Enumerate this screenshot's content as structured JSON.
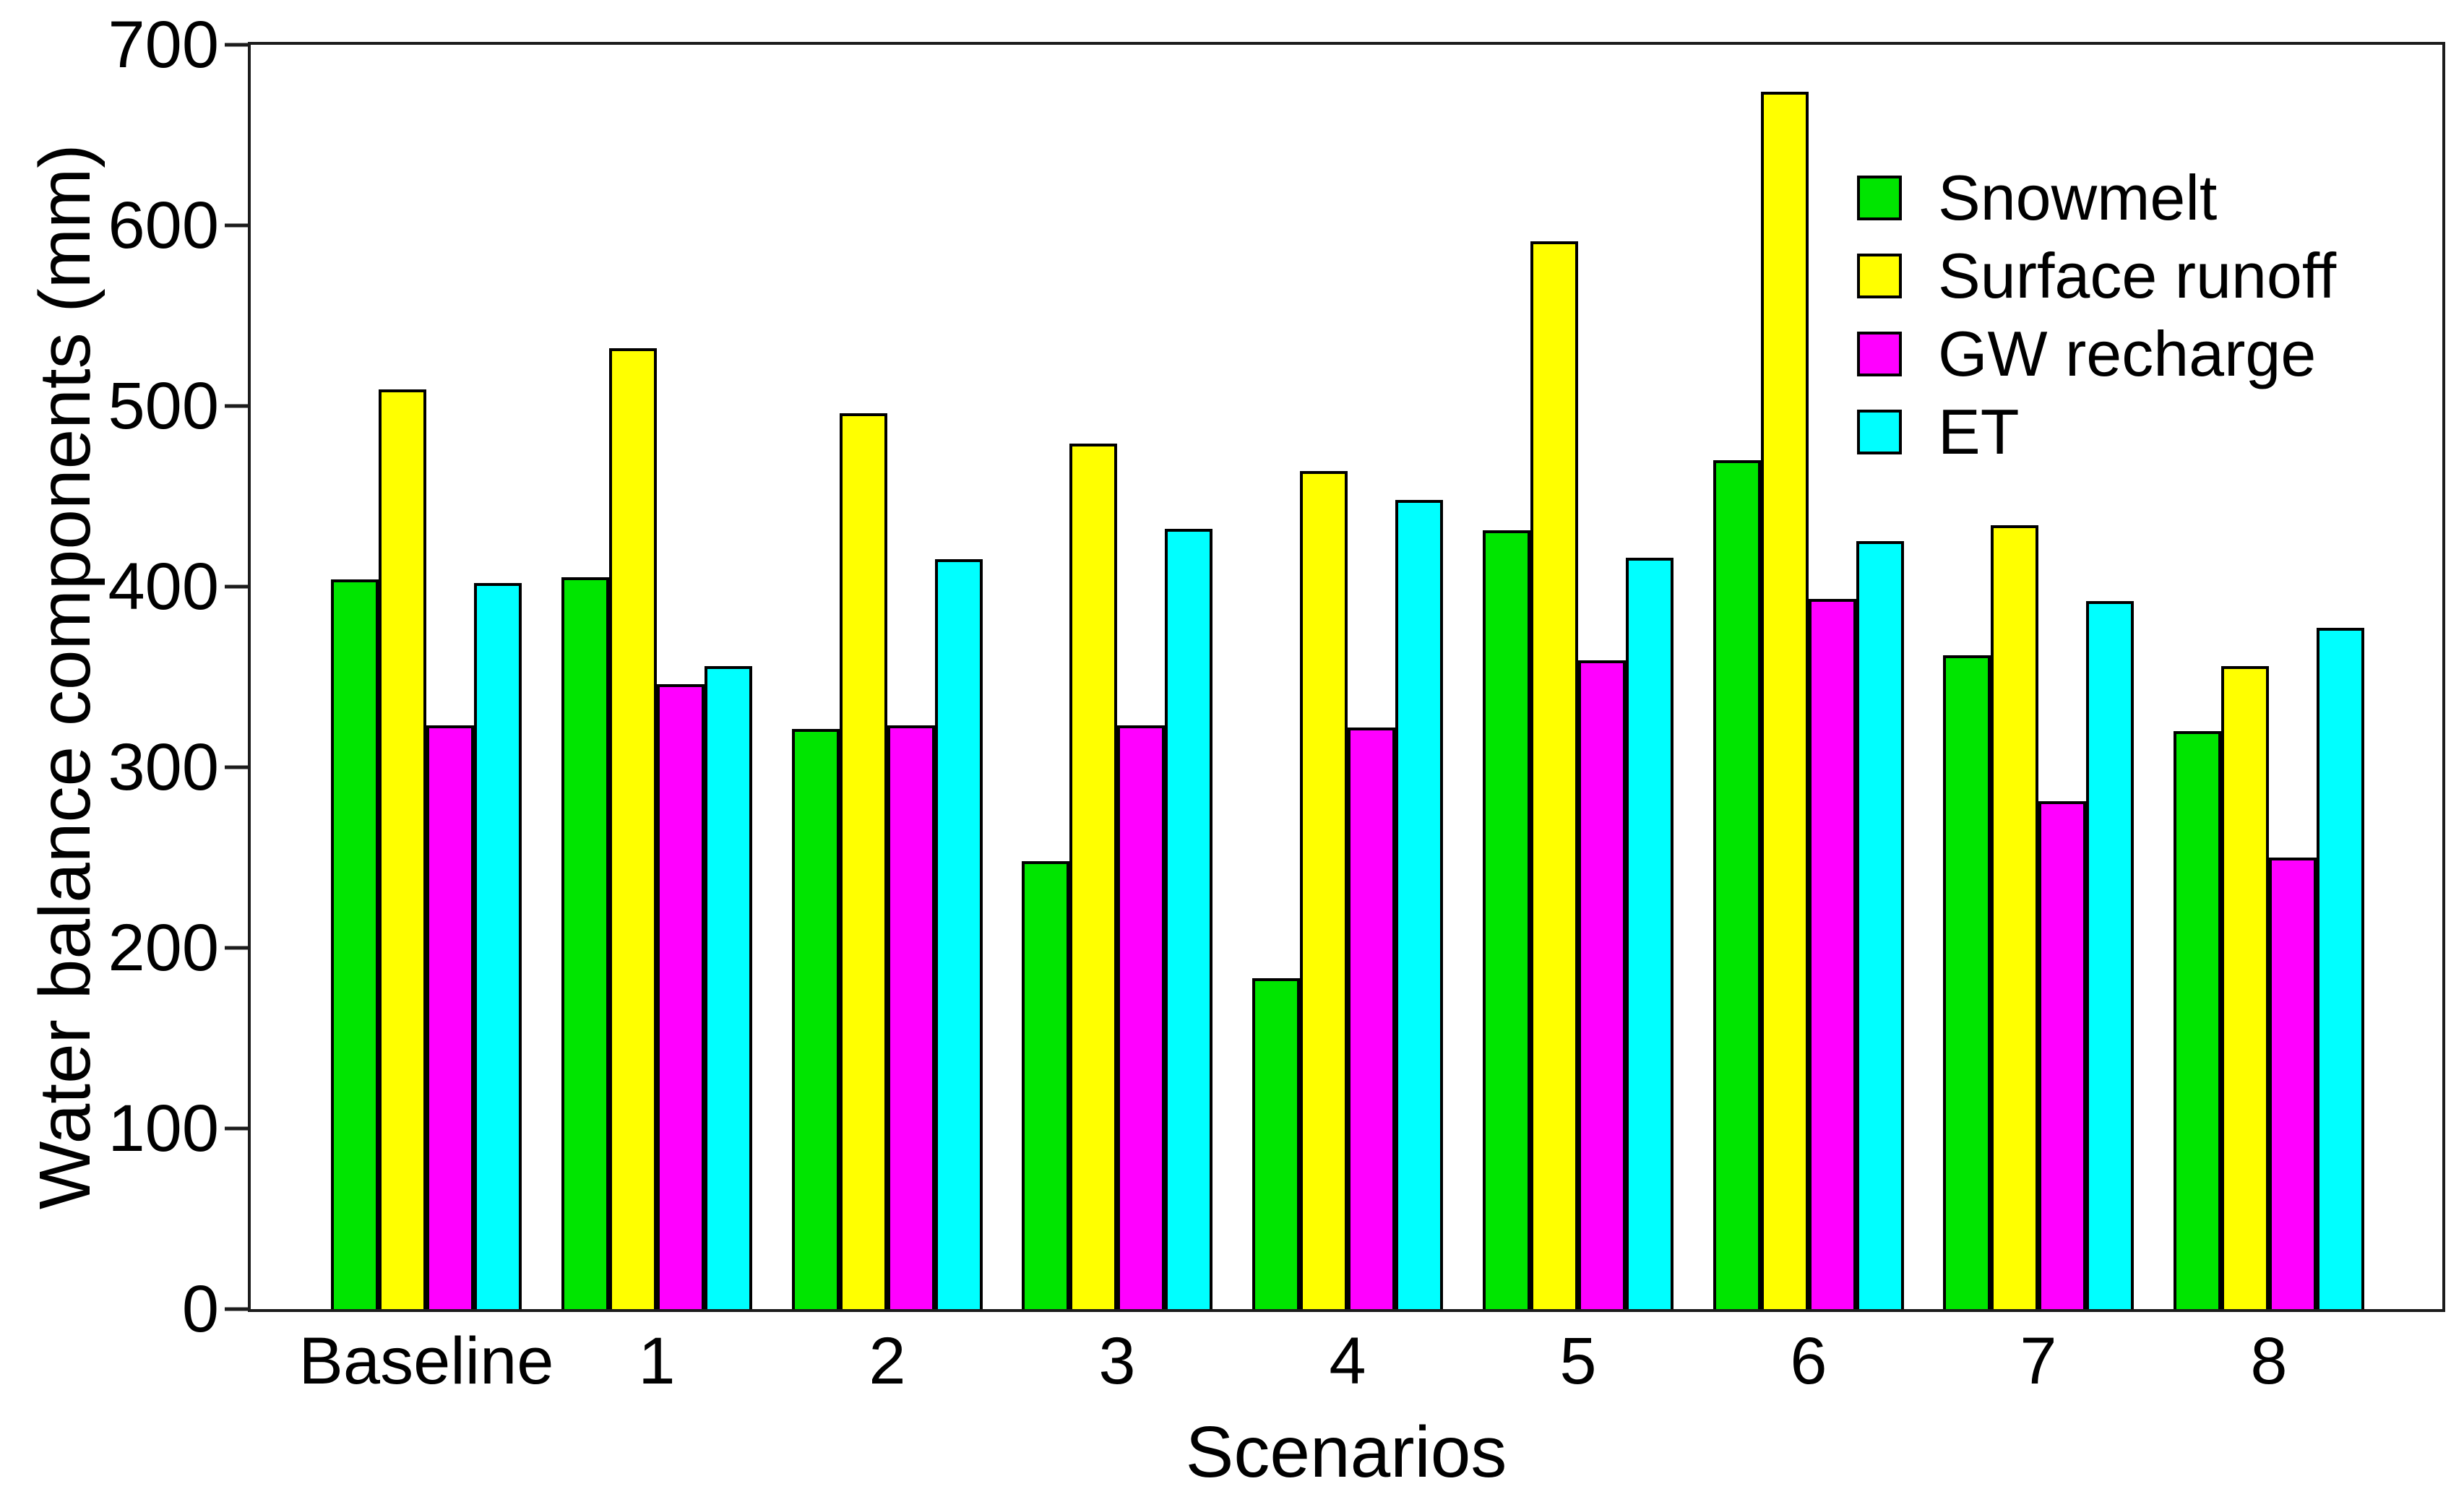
{
  "figure": {
    "background": "#ffffff",
    "frame_color": "#1c1c1c"
  },
  "chart_data": {
    "type": "bar",
    "title": "",
    "xlabel": "Scenarios",
    "ylabel": "Water balance components (mm)",
    "categories": [
      "Baseline",
      "1",
      "2",
      "3",
      "4",
      "5",
      "6",
      "7",
      "8"
    ],
    "series": [
      {
        "name": "Snowmelt",
        "color": "#00e500",
        "values": [
          404,
          405,
          321,
          248,
          183,
          431,
          470,
          362,
          320
        ]
      },
      {
        "name": "Surface runoff",
        "color": "#ffff00",
        "values": [
          509,
          532,
          496,
          479,
          464,
          591,
          674,
          434,
          356
        ]
      },
      {
        "name": "GW recharge",
        "color": "#ff00ff",
        "values": [
          323,
          346,
          323,
          323,
          322,
          359,
          393,
          281,
          250
        ]
      },
      {
        "name": "ET",
        "color": "#00ffff",
        "values": [
          402,
          356,
          415,
          432,
          448,
          416,
          425,
          392,
          377
        ]
      }
    ],
    "ylim": [
      0,
      700
    ],
    "y_ticks": [
      0,
      100,
      200,
      300,
      400,
      500,
      600,
      700
    ],
    "grid": false,
    "legend_position": "top-right-inside"
  }
}
